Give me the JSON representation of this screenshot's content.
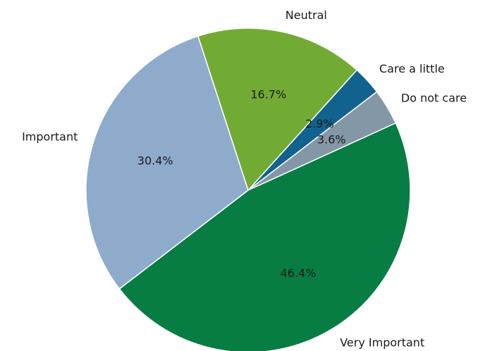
{
  "chart_data": {
    "type": "pie",
    "categories": [
      "Do not care",
      "Care a little",
      "Neutral",
      "Important",
      "Very Important"
    ],
    "values": [
      3.6,
      2.9,
      16.7,
      30.4,
      46.4
    ],
    "value_labels": [
      "3.6%",
      "2.9%",
      "16.7%",
      "30.4%",
      "46.4%"
    ],
    "colors": [
      "#8497a6",
      "#12628f",
      "#72ab34",
      "#8fabcc",
      "#077c43"
    ]
  }
}
